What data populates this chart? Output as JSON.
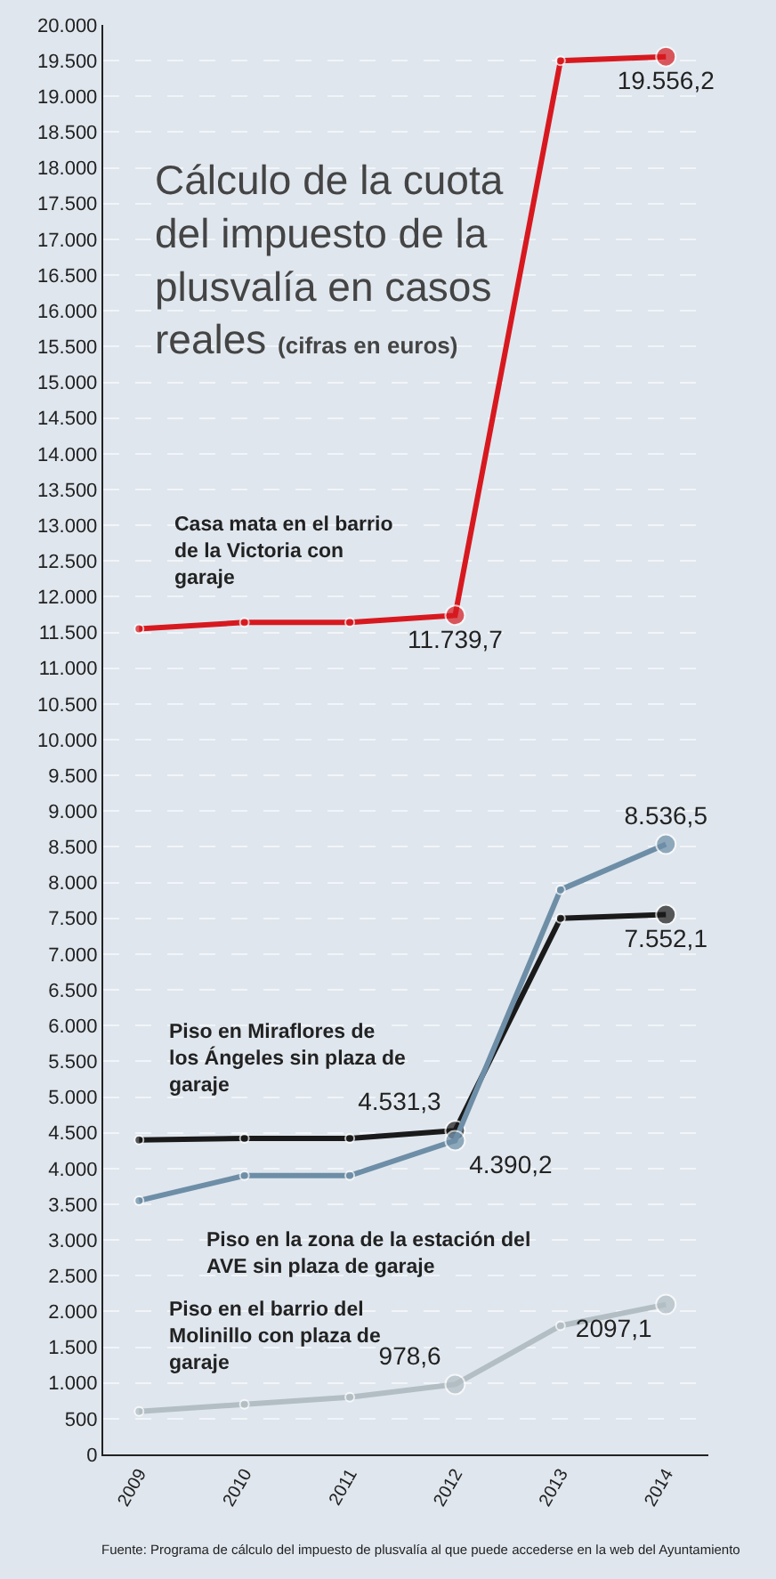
{
  "chart_data": {
    "type": "line",
    "title": "Cálculo de la cuota del impuesto de la plusvalía en casos reales",
    "subtitle": "(cifras en euros)",
    "categories": [
      "2009",
      "2010",
      "2011",
      "2012",
      "2013",
      "2014"
    ],
    "series": [
      {
        "name": "Casa mata en el barrio de la Victoria con garaje",
        "color": "#d7191f",
        "values": [
          11550,
          11640,
          11640,
          11739.7,
          19500,
          19556.2
        ],
        "value_labels": [
          null,
          null,
          null,
          "11.739,7",
          null,
          "19.556,2"
        ]
      },
      {
        "name": "Piso en Miraflores de los Ángeles sin plaza de garaje",
        "color": "#1a1a1a",
        "values": [
          4400,
          4420,
          4420,
          4531.3,
          7500,
          7552.1
        ],
        "value_labels": [
          null,
          null,
          null,
          "4.531,3",
          null,
          "7.552,1"
        ]
      },
      {
        "name": "Piso en la zona de la estación del AVE sin plaza de garaje",
        "color": "#6d8ea6",
        "values": [
          3550,
          3900,
          3900,
          4390.2,
          7900,
          8536.5
        ],
        "value_labels": [
          null,
          null,
          null,
          "4.390,2",
          null,
          "8.536,5"
        ]
      },
      {
        "name": "Piso en el barrio del Molinillo con plaza de garaje",
        "color": "#b2bec4",
        "values": [
          600,
          700,
          800,
          978.6,
          1800,
          2097.1
        ],
        "value_labels": [
          null,
          null,
          null,
          "978,6",
          null,
          "2097,1"
        ]
      }
    ],
    "ylim": [
      0,
      20000
    ],
    "yticks": [
      0,
      500,
      {
        "value": 1000,
        "label": "1.000"
      },
      {
        "value": 1500,
        "label": "1.500"
      },
      {
        "value": 2000,
        "label": "2.000"
      },
      {
        "value": 2500,
        "label": "2.500"
      },
      {
        "value": 3000,
        "label": "3.000"
      },
      {
        "value": 3500,
        "label": "3.500"
      },
      {
        "value": 4000,
        "label": "4.000"
      },
      {
        "value": 4500,
        "label": "4.500"
      },
      {
        "value": 5000,
        "label": "5.000"
      },
      {
        "value": 5500,
        "label": "5.500"
      },
      {
        "value": 6000,
        "label": "6.000"
      },
      {
        "value": 6500,
        "label": "6.500"
      },
      {
        "value": 7000,
        "label": "7.000"
      },
      {
        "value": 7500,
        "label": "7.500"
      },
      {
        "value": 8000,
        "label": "8.000"
      },
      {
        "value": 8500,
        "label": "8.500"
      },
      {
        "value": 9000,
        "label": "9.000"
      },
      {
        "value": 9500,
        "label": "9.500"
      },
      {
        "value": 10000,
        "label": "10.000"
      },
      {
        "value": 10500,
        "label": "10.500"
      },
      {
        "value": 11000,
        "label": "11.000"
      },
      {
        "value": 11500,
        "label": "11.500"
      },
      {
        "value": 12000,
        "label": "12.000"
      },
      {
        "value": 12500,
        "label": "12.500"
      },
      {
        "value": 13000,
        "label": "13.000"
      },
      {
        "value": 13500,
        "label": "13.500"
      },
      {
        "value": 14000,
        "label": "14.000"
      },
      {
        "value": 14500,
        "label": "14.500"
      },
      {
        "value": 15000,
        "label": "15.000"
      },
      {
        "value": 15500,
        "label": "15.500"
      },
      {
        "value": 16000,
        "label": "16.000"
      },
      {
        "value": 16500,
        "label": "16.500"
      },
      {
        "value": 17000,
        "label": "17.000"
      },
      {
        "value": 17500,
        "label": "17.500"
      },
      {
        "value": 18000,
        "label": "18.000"
      },
      {
        "value": 18500,
        "label": "18.500"
      },
      {
        "value": 19000,
        "label": "19.000"
      },
      {
        "value": 19500,
        "label": "19.500"
      },
      {
        "value": 20000,
        "label": "20.000"
      }
    ],
    "grid": "y",
    "marker": "circle",
    "line_style": "solid",
    "legend": false,
    "annotations": [
      "Fuente: Programa de cálculo del impuesto de plusvalía al que puede accederse en la web del Ayuntamiento"
    ]
  }
}
